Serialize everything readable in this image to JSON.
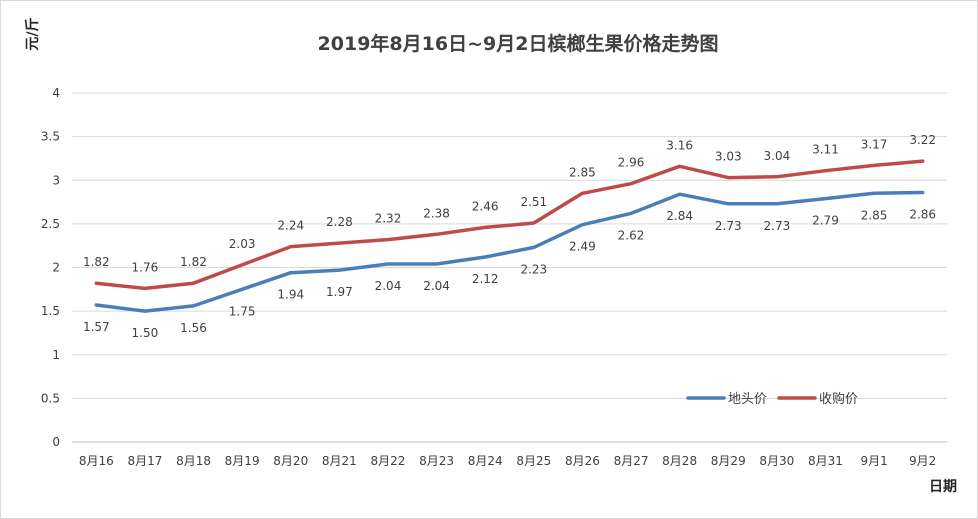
{
  "chart_data": {
    "type": "line",
    "title": "2019年8月16日~9月2日槟榔生果价格走势图",
    "xlabel": "日期",
    "ylabel": "元/斤",
    "ylim": [
      0,
      4
    ],
    "y_ticks": [
      "0",
      "0.5",
      "1",
      "1.5",
      "2",
      "2.5",
      "3",
      "3.5",
      "4"
    ],
    "grid": true,
    "legend_position": "bottom-right",
    "categories": [
      "8月16",
      "8月17",
      "8月18",
      "8月19",
      "8月20",
      "8月21",
      "8月22",
      "8月23",
      "8月24",
      "8月25",
      "8月26",
      "8月27",
      "8月28",
      "8月29",
      "8月30",
      "8月31",
      "9月1",
      "9月2"
    ],
    "series": [
      {
        "name": "地头价",
        "color": "#4a7ebb",
        "values": [
          1.57,
          1.5,
          1.56,
          1.75,
          1.94,
          1.97,
          2.04,
          2.04,
          2.12,
          2.23,
          2.49,
          2.62,
          2.84,
          2.73,
          2.73,
          2.79,
          2.85,
          2.86
        ],
        "labels": [
          "1.57",
          "1.50",
          "1.56",
          "1.75",
          "1.94",
          "1.97",
          "2.04",
          "2.04",
          "2.12",
          "2.23",
          "2.49",
          "2.62",
          "2.84",
          "2.73",
          "2.73",
          "2.79",
          "2.85",
          "2.86"
        ]
      },
      {
        "name": "收购价",
        "color": "#be4b48",
        "values": [
          1.82,
          1.76,
          1.82,
          2.03,
          2.24,
          2.28,
          2.32,
          2.38,
          2.46,
          2.51,
          2.85,
          2.96,
          3.16,
          3.03,
          3.04,
          3.11,
          3.17,
          3.22
        ],
        "labels": [
          "1.82",
          "1.76",
          "1.82",
          "2.03",
          "2.24",
          "2.28",
          "2.32",
          "2.38",
          "2.46",
          "2.51",
          "2.85",
          "2.96",
          "3.16",
          "3.03",
          "3.04",
          "3.11",
          "3.17",
          "3.22"
        ]
      }
    ]
  }
}
